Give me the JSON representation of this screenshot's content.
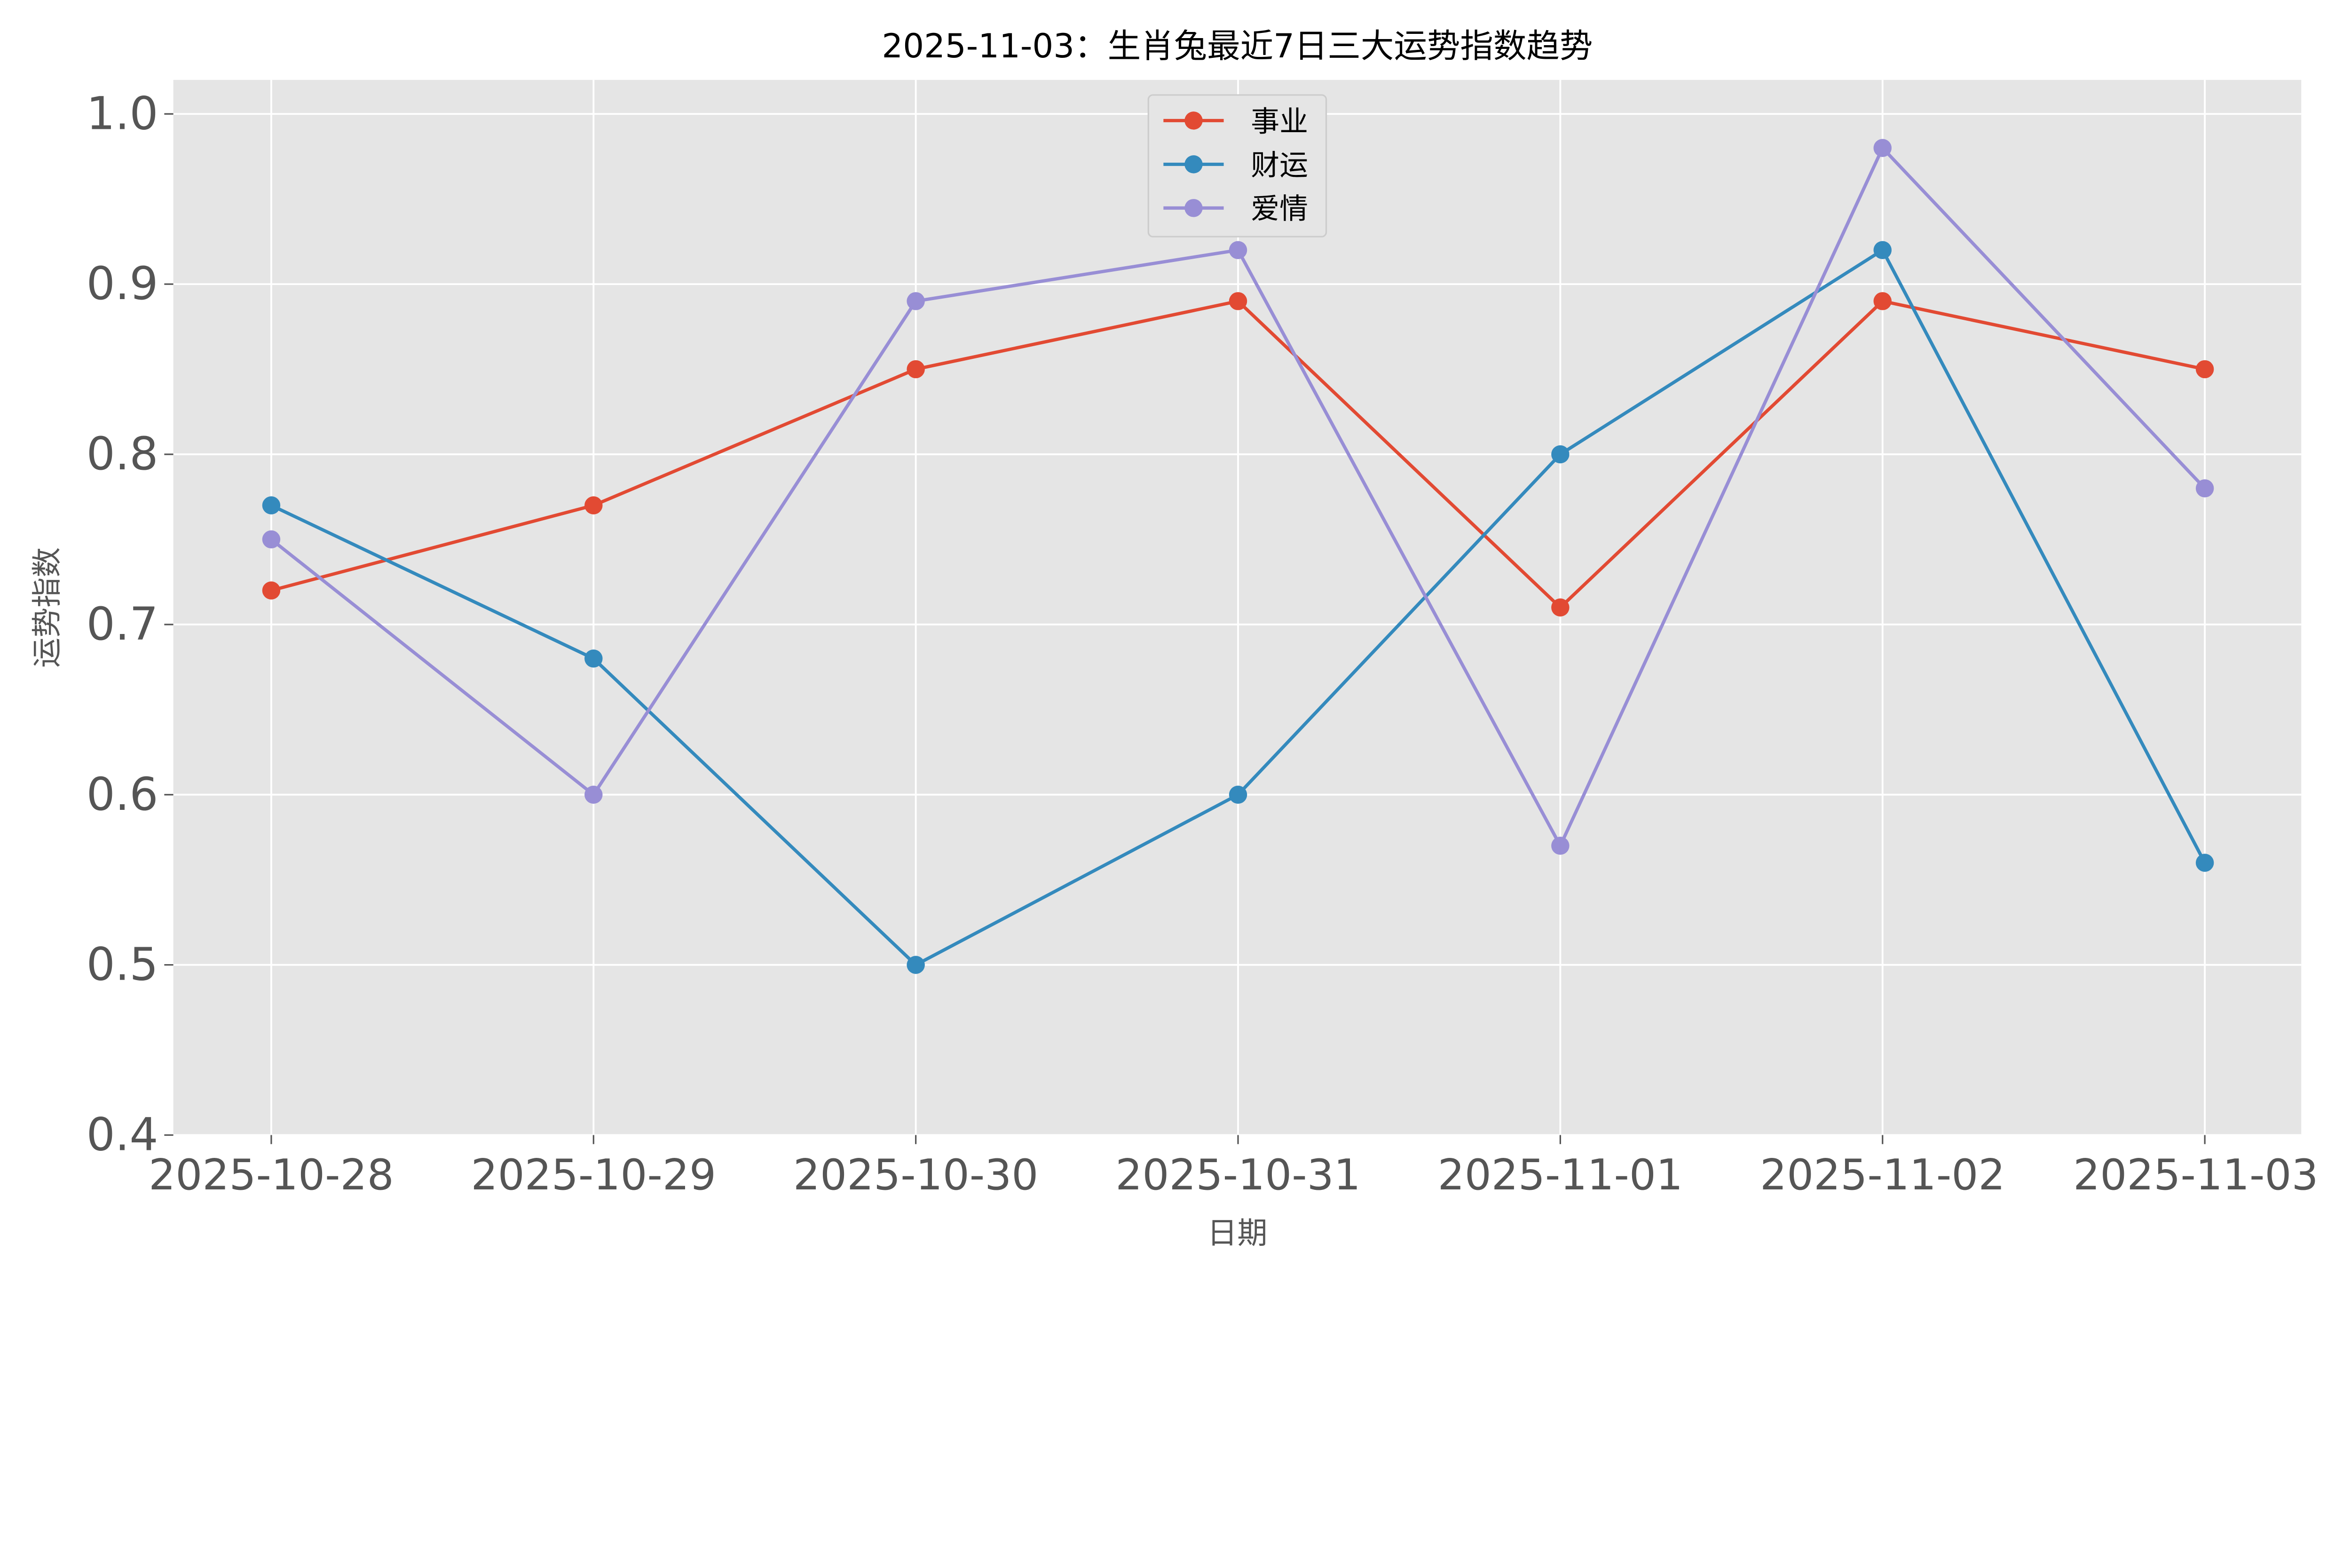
{
  "chart_data": {
    "type": "line",
    "title": "2025-11-03：生肖兔最近7日三大运势指数趋势",
    "xlabel": "日期",
    "ylabel": "运势指数",
    "categories": [
      "2025-10-28",
      "2025-10-29",
      "2025-10-30",
      "2025-10-31",
      "2025-11-01",
      "2025-11-02",
      "2025-11-03"
    ],
    "ylim": [
      0.4,
      1.02
    ],
    "yticks": [
      "0.4",
      "0.5",
      "0.6",
      "0.7",
      "0.8",
      "0.9",
      "1.0"
    ],
    "grid": true,
    "legend_position": "top-center",
    "background": "#E5E5E5",
    "series": [
      {
        "name": "事业",
        "color": "#E24A33",
        "values": [
          0.72,
          0.77,
          0.85,
          0.89,
          0.71,
          0.89,
          0.85
        ]
      },
      {
        "name": "财运",
        "color": "#348ABD",
        "values": [
          0.77,
          0.68,
          0.5,
          0.6,
          0.8,
          0.92,
          0.56
        ]
      },
      {
        "name": "爱情",
        "color": "#988ED5",
        "values": [
          0.75,
          0.6,
          0.89,
          0.92,
          0.57,
          0.98,
          0.78
        ]
      }
    ]
  }
}
